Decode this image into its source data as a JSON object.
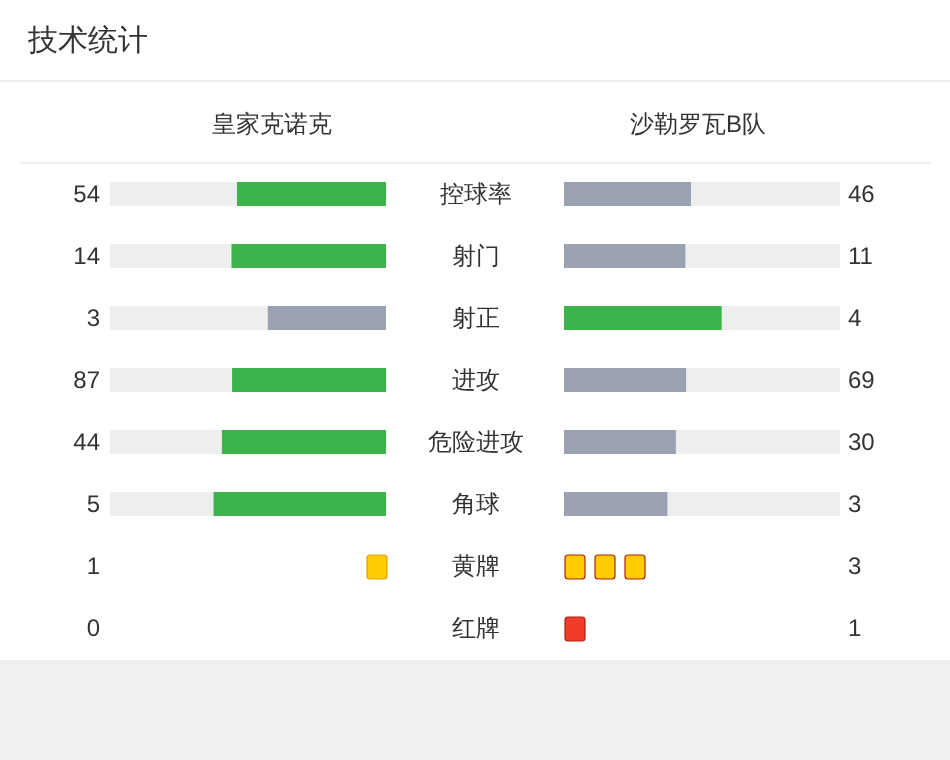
{
  "chart_data": {
    "type": "other",
    "data_labels": true,
    "title": "技术统计",
    "categories": [
      "控球率",
      "射门",
      "射正",
      "进攻",
      "危险进攻",
      "角球",
      "黄牌",
      "红牌"
    ],
    "series": [
      {
        "name": "皇家克诺克",
        "values": [
          54,
          14,
          3,
          87,
          44,
          5,
          1,
          0
        ],
        "colors": [
          "#3cb44b",
          "#3cb44b",
          "#9aa1b1",
          "#3cb44b",
          "#3cb44b",
          "#3cb44b",
          "#ffcc00",
          "#f03c28"
        ]
      },
      {
        "name": "沙勒罗瓦B队",
        "values": [
          46,
          11,
          4,
          69,
          30,
          3,
          3,
          1
        ],
        "colors": [
          "#9aa1b1",
          "#9aa1b1",
          "#3cb44b",
          "#9aa1b1",
          "#9aa1b1",
          "#9aa1b1",
          "#ffcc00",
          "#f03c28"
        ]
      }
    ]
  }
}
